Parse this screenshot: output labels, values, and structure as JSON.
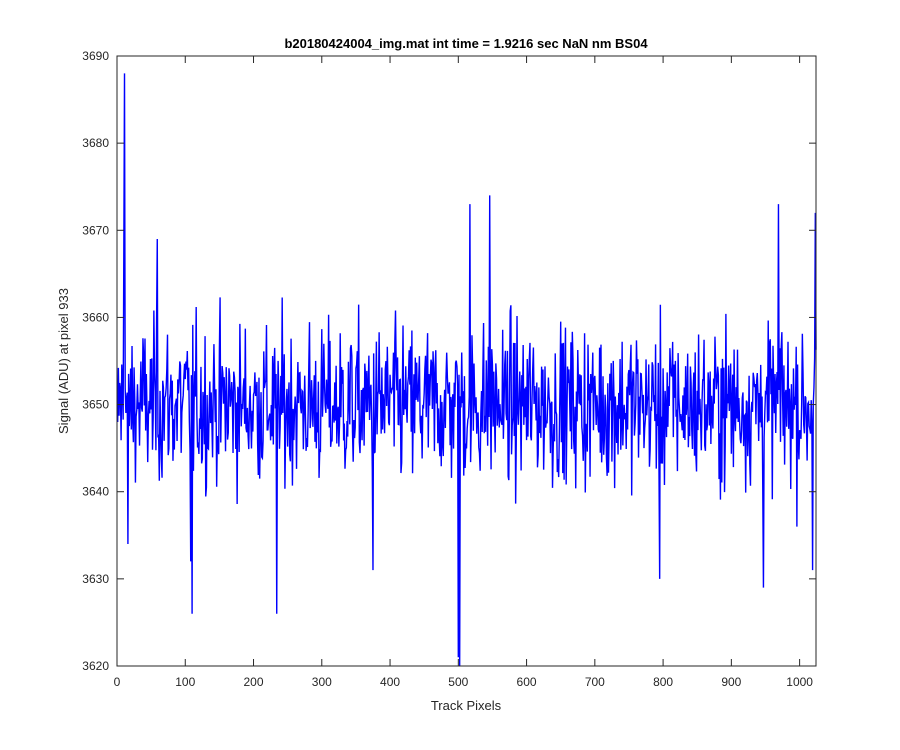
{
  "chart_data": {
    "type": "line",
    "title": "b20180424004_img.mat int time = 1.9216 sec  NaN nm BS04",
    "xlabel": "Track Pixels",
    "ylabel": "Signal (ADU) at pixel 933",
    "xlim": [
      0,
      1024
    ],
    "ylim": [
      3620,
      3690
    ],
    "xticks": [
      0,
      100,
      200,
      300,
      400,
      500,
      600,
      700,
      800,
      900,
      1000
    ],
    "yticks": [
      3620,
      3630,
      3640,
      3650,
      3660,
      3670,
      3680,
      3690
    ],
    "grid": false,
    "color": "#0000ff",
    "series": [
      {
        "n_points": 1024,
        "baseline": 3650,
        "typical_range": [
          3636,
          3664
        ],
        "notable_points": [
          {
            "x": 1,
            "y": 3648
          },
          {
            "x": 10,
            "y": 3668
          },
          {
            "x": 11,
            "y": 3688
          },
          {
            "x": 16,
            "y": 3634
          },
          {
            "x": 59,
            "y": 3669
          },
          {
            "x": 108,
            "y": 3632
          },
          {
            "x": 110,
            "y": 3626
          },
          {
            "x": 234,
            "y": 3626
          },
          {
            "x": 375,
            "y": 3631
          },
          {
            "x": 500,
            "y": 3621
          },
          {
            "x": 502,
            "y": 3620
          },
          {
            "x": 517,
            "y": 3673
          },
          {
            "x": 546,
            "y": 3674
          },
          {
            "x": 795,
            "y": 3630
          },
          {
            "x": 947,
            "y": 3629
          },
          {
            "x": 969,
            "y": 3673
          },
          {
            "x": 1019,
            "y": 3631
          },
          {
            "x": 1023,
            "y": 3672
          }
        ]
      }
    ]
  }
}
